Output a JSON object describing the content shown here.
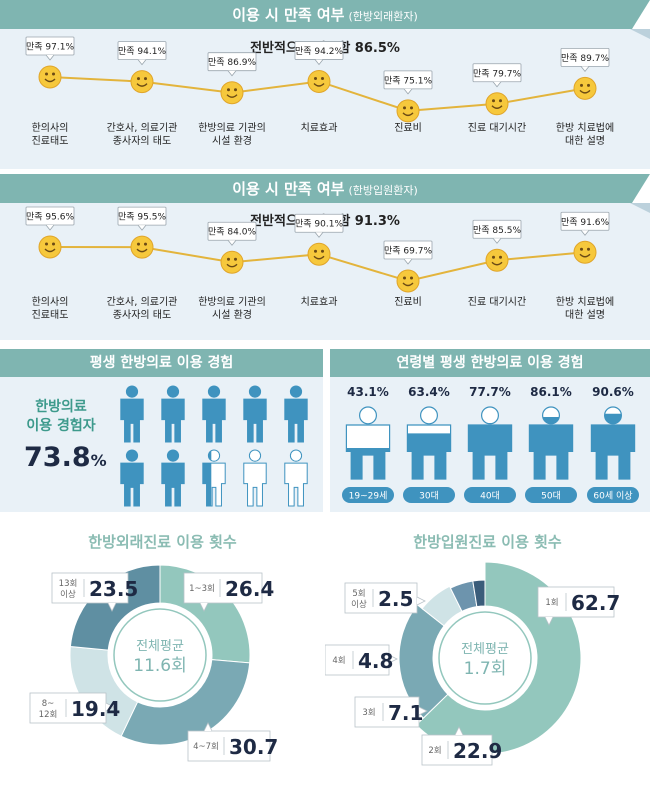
{
  "sec1": {
    "title": "이용 시 만족 여부",
    "subtitle": "(한방외래환자)",
    "overall": "전반적으로 만족함 86.5%"
  },
  "sec2": {
    "title": "이용 시 만족 여부",
    "subtitle": "(한방입원환자)",
    "overall": "전반적으로 만족함 91.3%"
  },
  "chart_data": [
    {
      "type": "line",
      "title": "이용 시 만족 여부 (한방외래환자)",
      "categories": [
        "한의사의\n진료태도",
        "간호사, 의료기관\n종사자의 태도",
        "한방의료 기관의\n시설 환경",
        "치료효과",
        "진료비",
        "진료 대기시간",
        "한방 치료법에\n대한 설명"
      ],
      "values": [
        97.1,
        94.1,
        86.9,
        94.2,
        75.1,
        79.7,
        89.7
      ],
      "value_labels": [
        "만족 97.1%",
        "만족 94.1%",
        "만족 86.9%",
        "만족 94.2%",
        "만족 75.1%",
        "만족 79.7%",
        "만족 89.7%"
      ]
    },
    {
      "type": "line",
      "title": "이용 시 만족 여부 (한방입원환자)",
      "categories": [
        "한의사의\n진료태도",
        "간호사, 의료기관\n종사자의 태도",
        "한방의료 기관의\n시설 환경",
        "치료효과",
        "진료비",
        "진료 대기시간",
        "한방 치료법에\n대한 설명"
      ],
      "values": [
        95.6,
        95.5,
        84.0,
        90.1,
        69.7,
        85.5,
        91.6
      ],
      "value_labels": [
        "만족 95.6%",
        "만족 95.5%",
        "만족 84.0%",
        "만족 90.1%",
        "만족 69.7%",
        "만족 85.5%",
        "만족 91.6%"
      ]
    },
    {
      "type": "table",
      "title": "평생 한방의료 이용 경험",
      "label": "한방의료\n이용 경험자",
      "value": 73.8,
      "value_text": "73.8",
      "unit": "%",
      "icons_total": 10
    },
    {
      "type": "bar",
      "title": "연령별 평생 한방의료 이용 경험",
      "categories": [
        "19~29세",
        "30대",
        "40대",
        "50대",
        "60세 이상"
      ],
      "values": [
        43.1,
        63.4,
        77.7,
        86.1,
        90.6
      ],
      "value_labels": [
        "43.1%",
        "63.4%",
        "77.7%",
        "86.1%",
        "90.6%"
      ]
    },
    {
      "type": "pie",
      "title": "한방외래진료 이용 횟수",
      "center_label": "전체평균",
      "center_value": "11.6회",
      "categories": [
        "1~3회",
        "4~7회",
        "8~\n12회",
        "13회\n이상"
      ],
      "values": [
        26.4,
        30.7,
        19.4,
        23.5
      ],
      "colors": [
        "#93c7bd",
        "#7aa9b4",
        "#cfe3e6",
        "#5f8fa2"
      ]
    },
    {
      "type": "pie",
      "title": "한방입원진료 이용 횟수",
      "center_label": "전체평균",
      "center_value": "1.7회",
      "categories": [
        "1회",
        "2회",
        "3회",
        "4회",
        "5회\n이상"
      ],
      "values": [
        62.7,
        22.9,
        7.1,
        4.8,
        2.5
      ],
      "colors": [
        "#93c7bd",
        "#7aa9b4",
        "#cfe3e6",
        "#6d94ad",
        "#3b5d7a"
      ]
    }
  ]
}
